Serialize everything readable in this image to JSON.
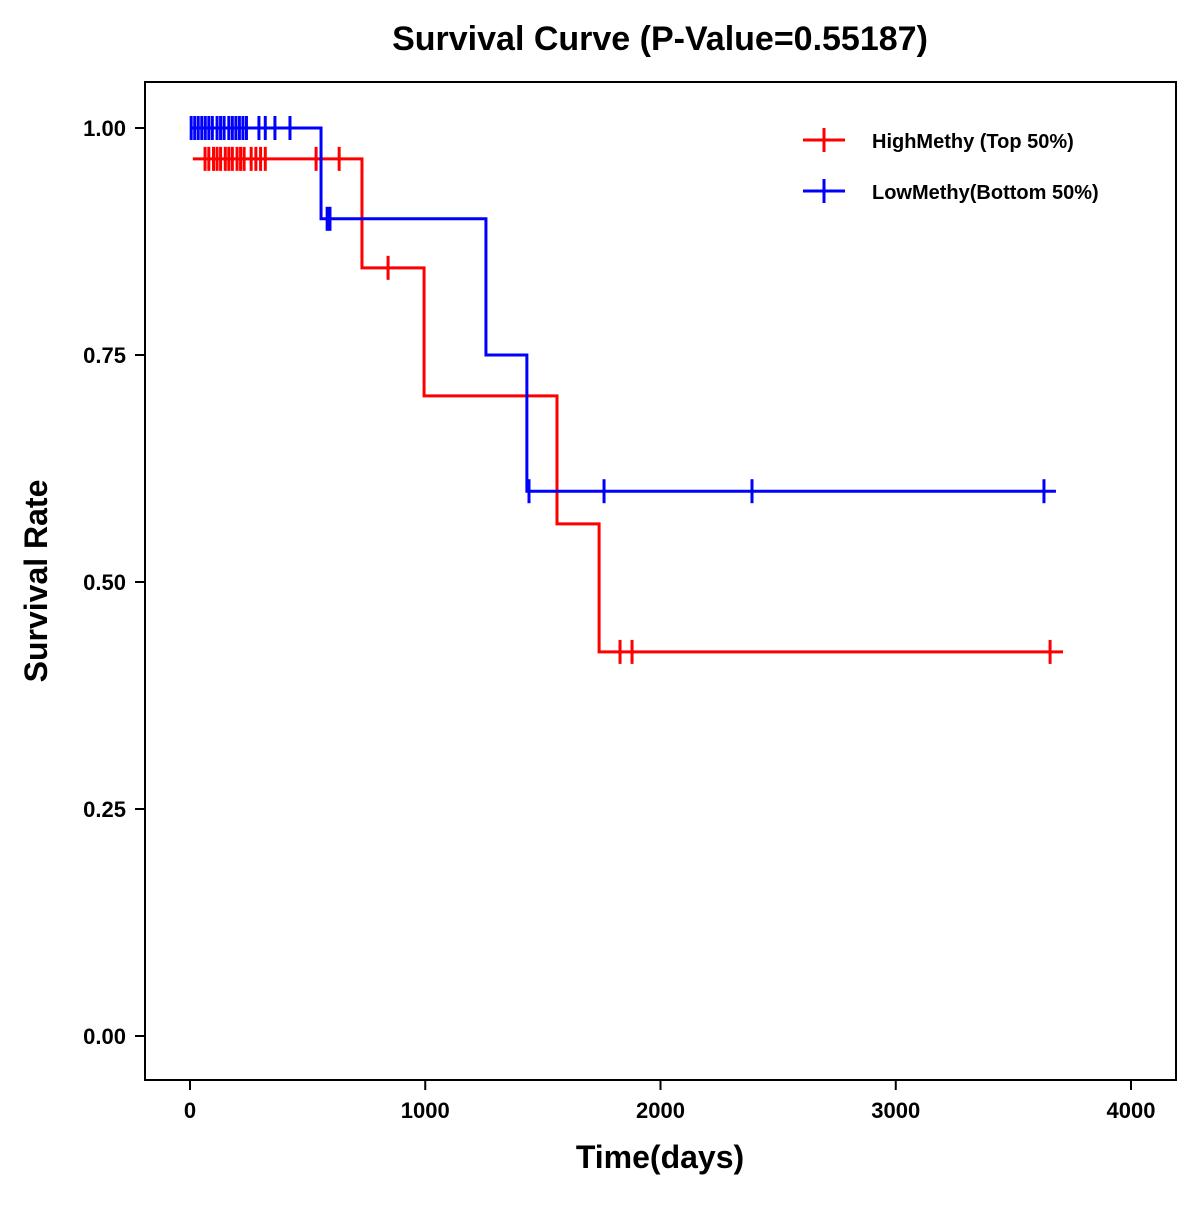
{
  "chart_data": {
    "type": "line",
    "title": "Survival Curve (P-Value=0.55187)",
    "xlabel": "Time(days)",
    "ylabel": "Survival Rate",
    "xlim": [
      0,
      4000
    ],
    "ylim": [
      0,
      1
    ],
    "xticks": [
      0,
      1000,
      2000,
      3000,
      4000
    ],
    "xtick_labels": [
      "0",
      "1000",
      "2000",
      "3000",
      "4000"
    ],
    "yticks": [
      0,
      0.25,
      0.5,
      0.75,
      1
    ],
    "ytick_labels": [
      "0.00",
      "0.25",
      "0.50",
      "0.75",
      "1.00"
    ],
    "grid": false,
    "legend_position": "top-right",
    "series": [
      {
        "name": "HighMethy (Top 50%)",
        "color": "#ff0000",
        "steps": [
          [
            12,
            0.966
          ],
          [
            731,
            0.846
          ],
          [
            995,
            0.705
          ],
          [
            1560,
            0.564
          ],
          [
            1739,
            0.423
          ]
        ],
        "end": 3711,
        "censored": [
          [
            64,
            0.966
          ],
          [
            80,
            0.966
          ],
          [
            100,
            0.966
          ],
          [
            115,
            0.966
          ],
          [
            130,
            0.966
          ],
          [
            150,
            0.966
          ],
          [
            165,
            0.966
          ],
          [
            180,
            0.966
          ],
          [
            200,
            0.966
          ],
          [
            215,
            0.966
          ],
          [
            230,
            0.966
          ],
          [
            260,
            0.966
          ],
          [
            280,
            0.966
          ],
          [
            300,
            0.966
          ],
          [
            320,
            0.966
          ],
          [
            536,
            0.966
          ],
          [
            634,
            0.966
          ],
          [
            842,
            0.846
          ],
          [
            1828,
            0.423
          ],
          [
            1879,
            0.423
          ],
          [
            3656,
            0.423
          ]
        ]
      },
      {
        "name": "LowMethy(Bottom 50%)",
        "color": "#0000ff",
        "steps": [
          [
            0,
            1.0
          ],
          [
            557,
            0.9
          ],
          [
            1258,
            0.75
          ],
          [
            1432,
            0.6
          ]
        ],
        "end": 3681,
        "censored": [
          [
            5,
            1
          ],
          [
            20,
            1
          ],
          [
            35,
            1
          ],
          [
            50,
            1
          ],
          [
            65,
            1
          ],
          [
            80,
            1
          ],
          [
            95,
            1
          ],
          [
            115,
            1
          ],
          [
            130,
            1
          ],
          [
            145,
            1
          ],
          [
            165,
            1
          ],
          [
            180,
            1
          ],
          [
            195,
            1
          ],
          [
            210,
            1
          ],
          [
            225,
            1
          ],
          [
            240,
            1
          ],
          [
            293,
            1
          ],
          [
            320,
            1
          ],
          [
            361,
            1
          ],
          [
            425,
            1
          ],
          [
            583,
            0.9
          ],
          [
            595,
            0.9
          ],
          [
            1441,
            0.6
          ],
          [
            1760,
            0.6
          ],
          [
            2389,
            0.6
          ],
          [
            3630,
            0.6
          ]
        ]
      }
    ]
  }
}
